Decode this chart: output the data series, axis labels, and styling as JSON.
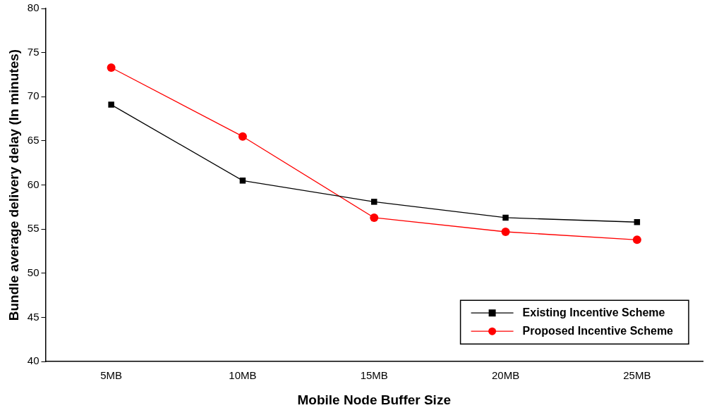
{
  "chart_data": {
    "type": "line",
    "xlabel": "Mobile Node Buffer Size",
    "ylabel": "Bundle average delivery delay (In minutes)",
    "categories": [
      "5MB",
      "10MB",
      "15MB",
      "20MB",
      "25MB"
    ],
    "series": [
      {
        "name": "Existing Incentive Scheme",
        "color": "#000000",
        "marker": "square",
        "values": [
          69.1,
          60.5,
          58.1,
          56.3,
          55.8
        ]
      },
      {
        "name": "Proposed Incentive Scheme",
        "color": "#ff0000",
        "marker": "circle",
        "values": [
          73.3,
          65.5,
          56.3,
          54.7,
          53.8
        ]
      }
    ],
    "ylim": [
      40,
      80
    ],
    "yticks": [
      40,
      45,
      50,
      55,
      60,
      65,
      70,
      75,
      80
    ],
    "grid": false,
    "legend": "bottom right",
    "line_style": "solid"
  }
}
